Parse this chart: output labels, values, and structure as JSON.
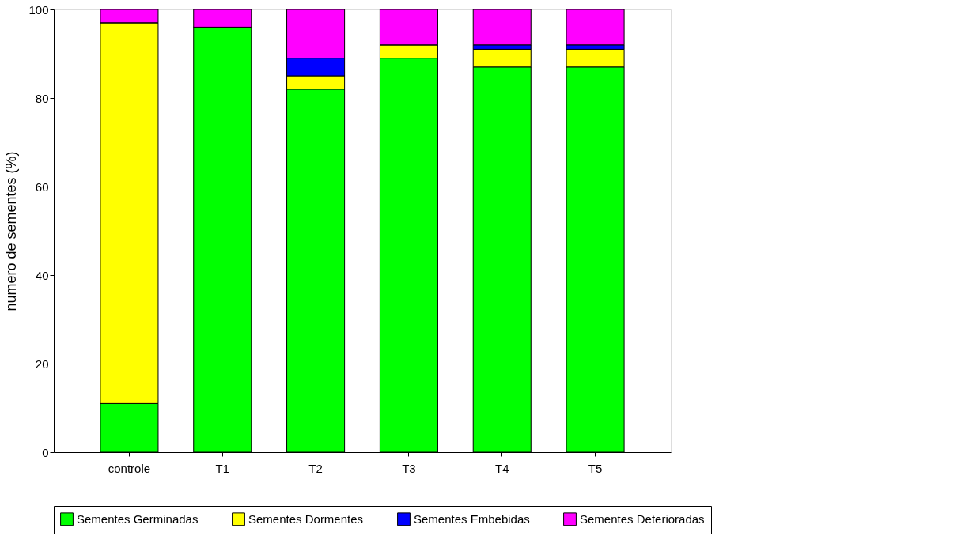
{
  "chart_data": {
    "type": "bar",
    "stacked": true,
    "ylabel": "numero de sementes (%)",
    "categories": [
      "controle",
      "T1",
      "T2",
      "T3",
      "T4",
      "T5"
    ],
    "series": [
      {
        "name": "Sementes Germinadas",
        "color": "#00ff00",
        "values": [
          11,
          96,
          82,
          89,
          87,
          87
        ]
      },
      {
        "name": "Sementes Dormentes",
        "color": "#ffff00",
        "values": [
          86,
          0,
          3,
          3,
          4,
          4
        ]
      },
      {
        "name": "Sementes Embebidas",
        "color": "#0000ff",
        "values": [
          0,
          0,
          4,
          0,
          1,
          1
        ]
      },
      {
        "name": "Sementes Deterioradas",
        "color": "#ff00ff",
        "values": [
          3,
          4,
          11,
          8,
          8,
          8
        ]
      }
    ],
    "ylim": [
      0,
      100
    ],
    "yticks": [
      0,
      20,
      40,
      60,
      80,
      100
    ],
    "grid": false,
    "legend": "bottom"
  }
}
